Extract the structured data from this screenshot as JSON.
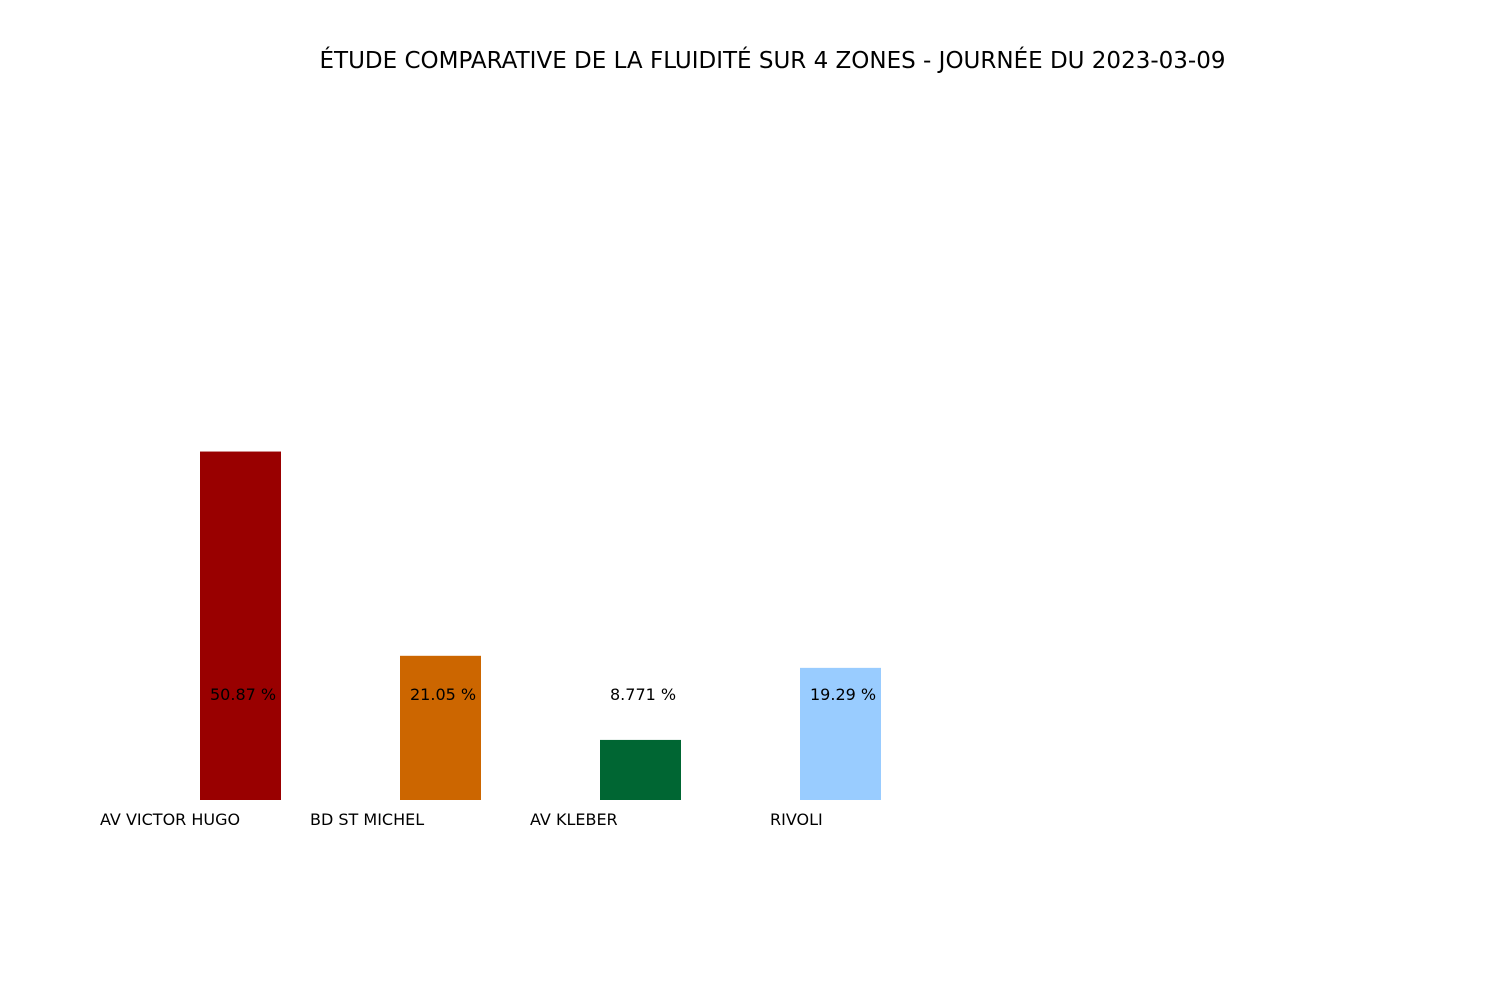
{
  "chart_data": {
    "type": "bar",
    "title": "ÉTUDE COMPARATIVE DE LA FLUIDITÉ SUR 4 ZONES - JOURNÉE DU 2023-03-09",
    "categories": [
      "AV VICTOR HUGO",
      "BD ST MICHEL",
      "AV KLEBER",
      "RIVOLI"
    ],
    "values": [
      50.87,
      21.05,
      8.771,
      19.29
    ],
    "data_labels": [
      "50.87 %",
      "21.05 %",
      "8.771 %",
      "19.29 %"
    ],
    "colors": [
      "#990000",
      "#cc6600",
      "#006633",
      "#99ccff"
    ],
    "xlabel": "",
    "ylabel": "",
    "ylim": [
      0,
      100
    ],
    "grid": false,
    "axes_visible": false
  }
}
